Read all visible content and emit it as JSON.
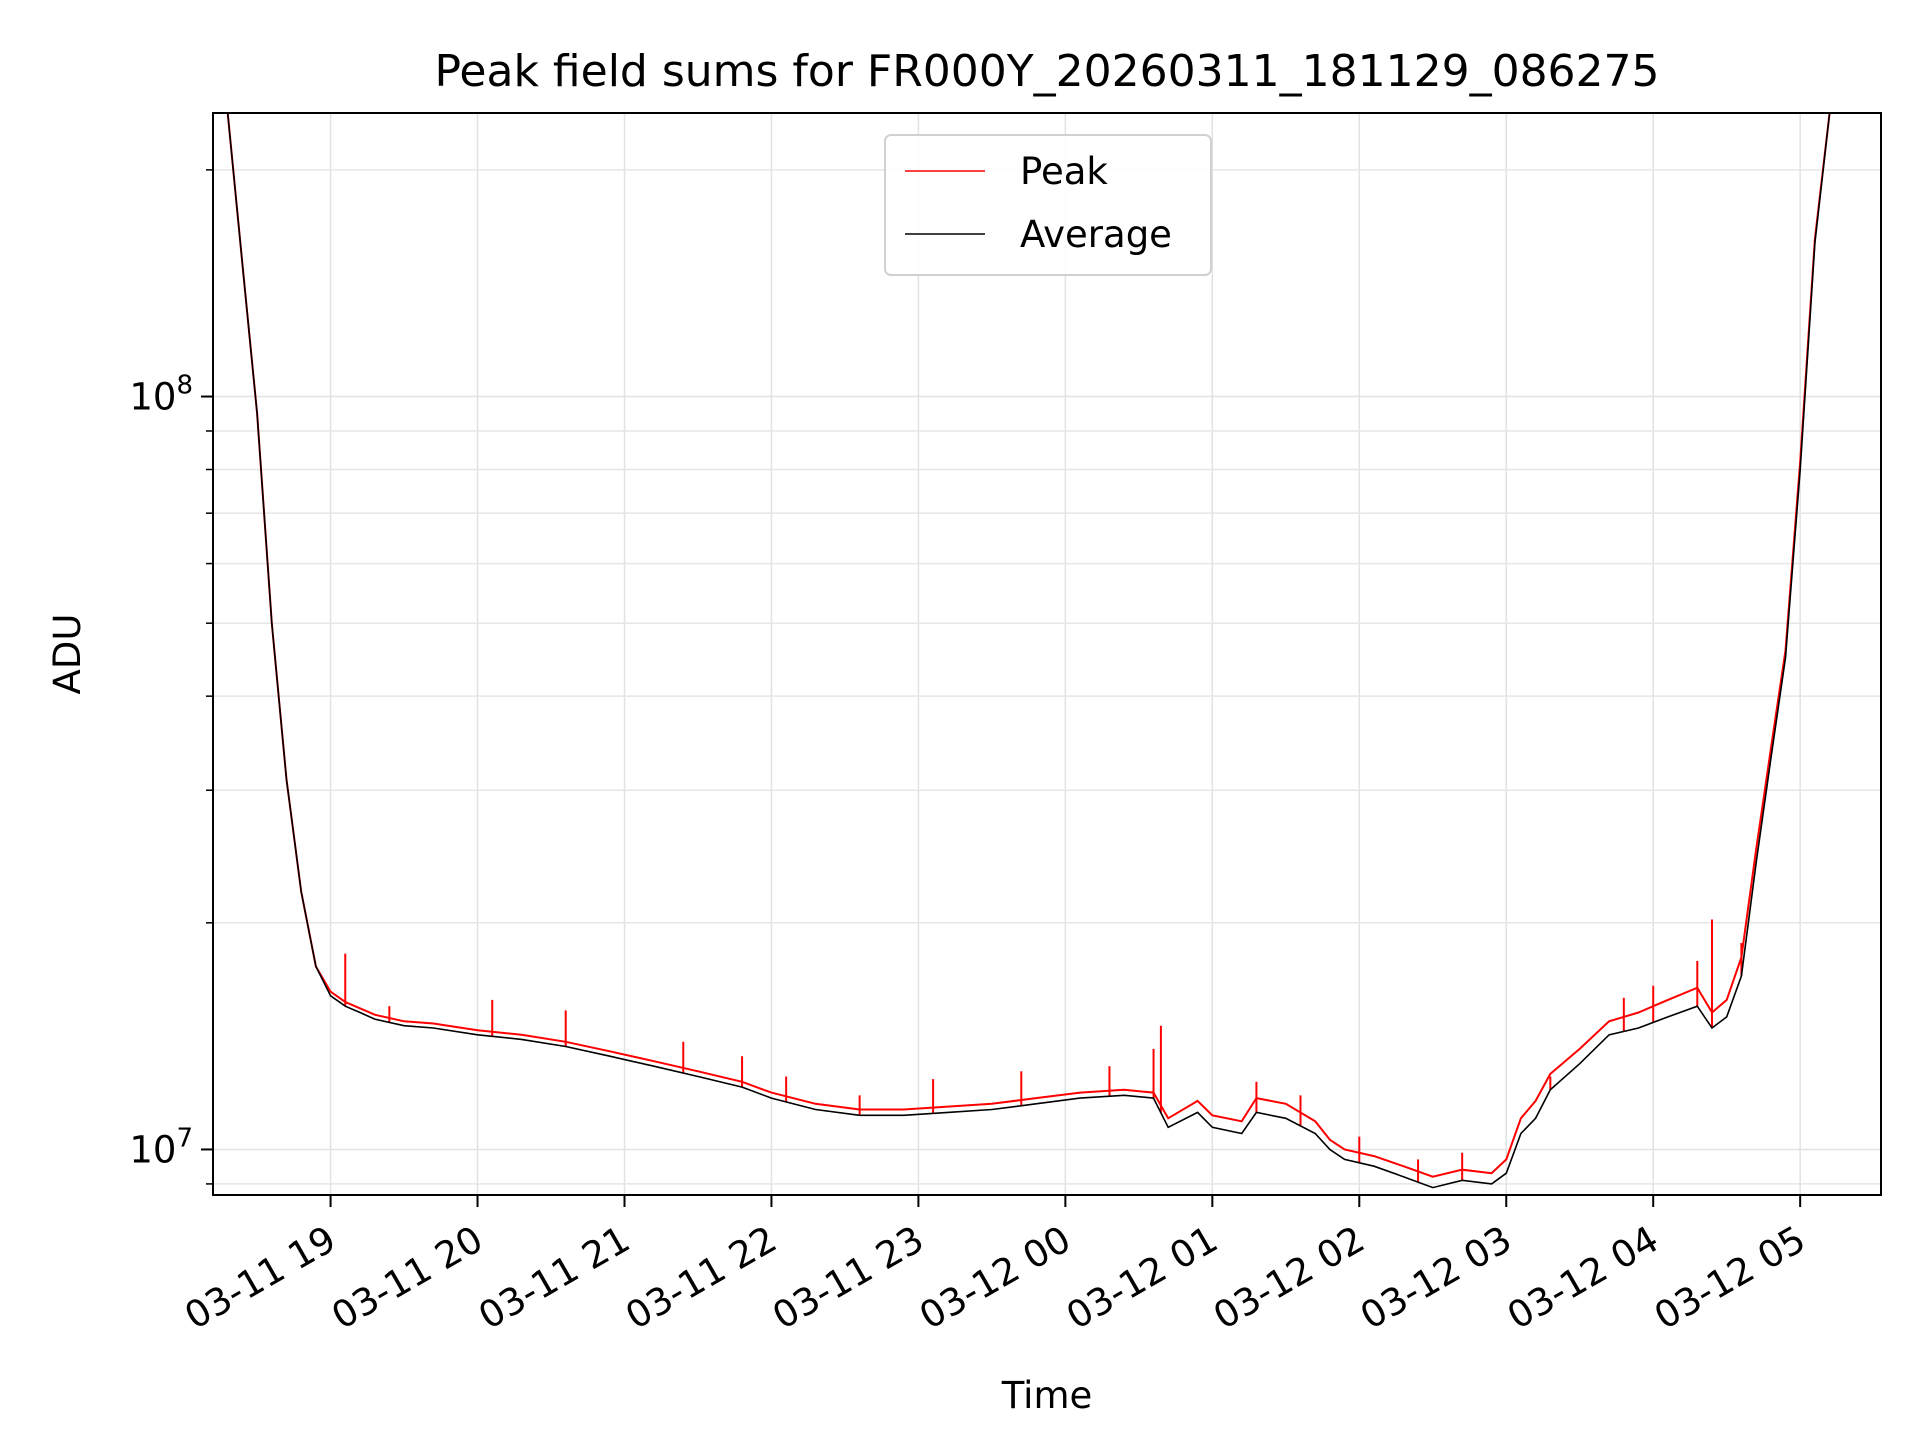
{
  "chart_data": {
    "type": "line",
    "title": "Peak field sums for FR000Y_20260311_181129_086275",
    "xlabel": "Time",
    "ylabel": "ADU",
    "yscale": "log",
    "xlim": [
      18.2,
      29.55
    ],
    "ylim": [
      8700000,
      238000000
    ],
    "grid": true,
    "legend": {
      "location": "upper center",
      "entries": [
        "Peak",
        "Average"
      ]
    },
    "x_ticks": [
      {
        "value": 19,
        "label": "03-11 19"
      },
      {
        "value": 20,
        "label": "03-11 20"
      },
      {
        "value": 21,
        "label": "03-11 21"
      },
      {
        "value": 22,
        "label": "03-11 22"
      },
      {
        "value": 23,
        "label": "03-11 23"
      },
      {
        "value": 24,
        "label": "03-12 00"
      },
      {
        "value": 25,
        "label": "03-12 01"
      },
      {
        "value": 26,
        "label": "03-12 02"
      },
      {
        "value": 27,
        "label": "03-12 03"
      },
      {
        "value": 28,
        "label": "03-12 04"
      },
      {
        "value": 29,
        "label": "03-12 05"
      }
    ],
    "y_ticks": [
      {
        "value": 10000000,
        "base": "10",
        "exp": "7"
      },
      {
        "value": 100000000,
        "base": "10",
        "exp": "8"
      }
    ],
    "y_minor_ticks": [
      9000000,
      20000000,
      30000000,
      40000000,
      50000000,
      60000000,
      70000000,
      80000000,
      90000000,
      200000000
    ],
    "series": [
      {
        "name": "Average",
        "color": "#000000",
        "x": [
          18.2,
          18.3,
          18.4,
          18.5,
          18.6,
          18.7,
          18.8,
          18.9,
          19.0,
          19.1,
          19.2,
          19.3,
          19.5,
          19.7,
          20.0,
          20.3,
          20.6,
          20.9,
          21.2,
          21.5,
          21.8,
          22.0,
          22.3,
          22.6,
          22.9,
          23.2,
          23.5,
          23.8,
          24.1,
          24.4,
          24.6,
          24.7,
          24.9,
          25.0,
          25.2,
          25.3,
          25.5,
          25.7,
          25.8,
          25.9,
          26.1,
          26.3,
          26.5,
          26.7,
          26.9,
          27.0,
          27.1,
          27.2,
          27.3,
          27.5,
          27.7,
          27.9,
          28.1,
          28.3,
          28.4,
          28.5,
          28.6,
          28.7,
          28.8,
          28.9,
          29.0,
          29.1,
          29.2,
          29.3,
          29.4,
          29.5
        ],
        "y": [
          238000000,
          238000000,
          150000000,
          95000000,
          50000000,
          31000000,
          22000000,
          17500000,
          16000000,
          15500000,
          15200000,
          14900000,
          14600000,
          14500000,
          14200000,
          14000000,
          13700000,
          13300000,
          12900000,
          12500000,
          12100000,
          11700000,
          11300000,
          11100000,
          11100000,
          11200000,
          11300000,
          11500000,
          11700000,
          11800000,
          11700000,
          10700000,
          11200000,
          10700000,
          10500000,
          11200000,
          11000000,
          10500000,
          10000000,
          9700000,
          9500000,
          9200000,
          8900000,
          9100000,
          9000000,
          9300000,
          10500000,
          11000000,
          12000000,
          13000000,
          14200000,
          14500000,
          15000000,
          15500000,
          14500000,
          15000000,
          17000000,
          24000000,
          33000000,
          45000000,
          80000000,
          160000000,
          238000000,
          238000000,
          238000000,
          238000000
        ]
      },
      {
        "name": "Peak",
        "color": "#ff0000",
        "x": [
          18.2,
          18.3,
          18.4,
          18.5,
          18.6,
          18.7,
          18.8,
          18.9,
          19.0,
          19.1,
          19.2,
          19.3,
          19.5,
          19.7,
          20.0,
          20.3,
          20.6,
          20.9,
          21.2,
          21.5,
          21.8,
          22.0,
          22.3,
          22.6,
          22.9,
          23.2,
          23.5,
          23.8,
          24.1,
          24.4,
          24.6,
          24.7,
          24.9,
          25.0,
          25.2,
          25.3,
          25.5,
          25.7,
          25.8,
          25.9,
          26.1,
          26.3,
          26.5,
          26.7,
          26.9,
          27.0,
          27.1,
          27.2,
          27.3,
          27.5,
          27.7,
          27.9,
          28.1,
          28.3,
          28.4,
          28.5,
          28.6,
          28.7,
          28.8,
          28.9,
          29.0,
          29.1,
          29.2,
          29.3,
          29.4,
          29.5
        ],
        "y": [
          238000000,
          238000000,
          150000000,
          95000000,
          50000000,
          31000000,
          22000000,
          17500000,
          16200000,
          15700000,
          15400000,
          15100000,
          14800000,
          14700000,
          14400000,
          14200000,
          13900000,
          13500000,
          13100000,
          12700000,
          12300000,
          11900000,
          11500000,
          11300000,
          11300000,
          11400000,
          11500000,
          11700000,
          11900000,
          12000000,
          11900000,
          11000000,
          11600000,
          11100000,
          10900000,
          11700000,
          11500000,
          10900000,
          10300000,
          10000000,
          9800000,
          9500000,
          9200000,
          9400000,
          9300000,
          9700000,
          11000000,
          11600000,
          12600000,
          13600000,
          14800000,
          15200000,
          15800000,
          16400000,
          15200000,
          15800000,
          18000000,
          25000000,
          34000000,
          46000000,
          82000000,
          162000000,
          238000000,
          238000000,
          238000000,
          238000000
        ]
      }
    ],
    "peak_spikes": [
      {
        "x": 19.1,
        "y": 18200000
      },
      {
        "x": 19.4,
        "y": 15500000
      },
      {
        "x": 20.1,
        "y": 15800000
      },
      {
        "x": 20.6,
        "y": 15300000
      },
      {
        "x": 21.4,
        "y": 13900000
      },
      {
        "x": 21.8,
        "y": 13300000
      },
      {
        "x": 22.1,
        "y": 12500000
      },
      {
        "x": 22.6,
        "y": 11800000
      },
      {
        "x": 23.1,
        "y": 12400000
      },
      {
        "x": 23.7,
        "y": 12700000
      },
      {
        "x": 24.3,
        "y": 12900000
      },
      {
        "x": 24.6,
        "y": 13600000
      },
      {
        "x": 24.65,
        "y": 14600000
      },
      {
        "x": 25.3,
        "y": 12300000
      },
      {
        "x": 25.6,
        "y": 11800000
      },
      {
        "x": 26.0,
        "y": 10400000
      },
      {
        "x": 26.4,
        "y": 9700000
      },
      {
        "x": 26.7,
        "y": 9900000
      },
      {
        "x": 27.3,
        "y": 12500000
      },
      {
        "x": 27.8,
        "y": 15900000
      },
      {
        "x": 28.0,
        "y": 16500000
      },
      {
        "x": 28.3,
        "y": 17800000
      },
      {
        "x": 28.4,
        "y": 20200000
      },
      {
        "x": 28.6,
        "y": 18800000
      }
    ]
  }
}
